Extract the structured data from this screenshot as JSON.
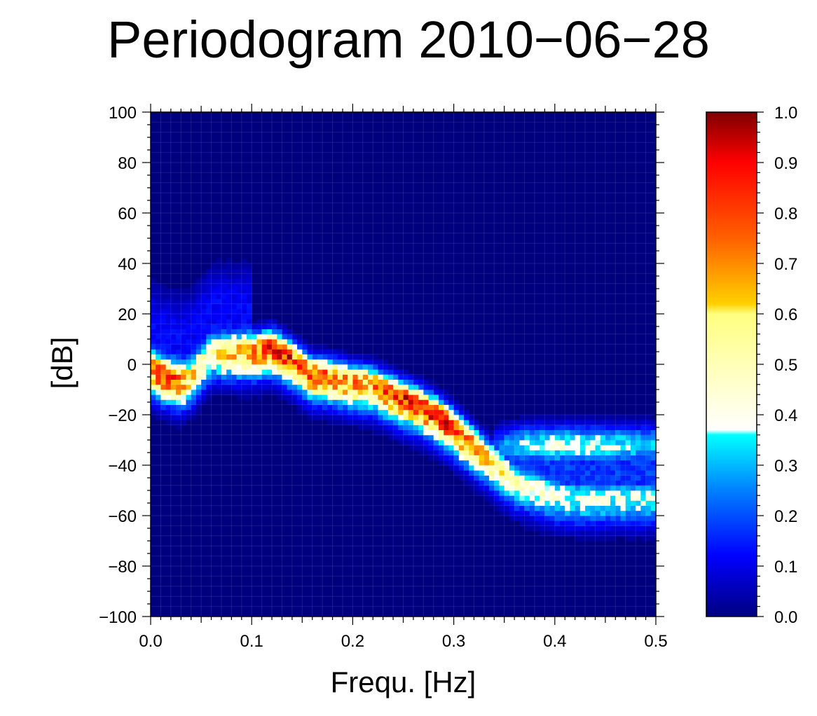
{
  "chart_data": {
    "type": "heatmap",
    "title": "Periodogram 2010−06−28",
    "xlabel": "Frequ. [Hz]",
    "ylabel": "[dB]",
    "xlim": [
      0.0,
      0.5
    ],
    "ylim": [
      -100,
      100
    ],
    "x_ticks": [
      "0.0",
      "0.1",
      "0.2",
      "0.3",
      "0.4",
      "0.5"
    ],
    "y_ticks": [
      "−100",
      "−80",
      "−60",
      "−40",
      "−20",
      "0",
      "20",
      "40",
      "60",
      "80",
      "100"
    ],
    "colorbar": {
      "range": [
        0.0,
        1.0
      ],
      "ticks": [
        "0.0",
        "0.1",
        "0.2",
        "0.3",
        "0.4",
        "0.5",
        "0.6",
        "0.7",
        "0.8",
        "0.9",
        "1.0"
      ],
      "colormap": [
        {
          "value": 0.0,
          "color": "#00007f"
        },
        {
          "value": 0.12,
          "color": "#0000ff"
        },
        {
          "value": 0.25,
          "color": "#0080ff"
        },
        {
          "value": 0.36,
          "color": "#00ffff"
        },
        {
          "value": 0.37,
          "color": "#ffffff"
        },
        {
          "value": 0.6,
          "color": "#ffff80"
        },
        {
          "value": 0.62,
          "color": "#ffd000"
        },
        {
          "value": 0.75,
          "color": "#ff6000"
        },
        {
          "value": 0.9,
          "color": "#ff0000"
        },
        {
          "value": 1.0,
          "color": "#7f0000"
        }
      ]
    },
    "ridge": {
      "freq": [
        0.0,
        0.01,
        0.02,
        0.03,
        0.04,
        0.05,
        0.06,
        0.08,
        0.1,
        0.12,
        0.14,
        0.16,
        0.18,
        0.2,
        0.22,
        0.24,
        0.26,
        0.28,
        0.3,
        0.32,
        0.34,
        0.36,
        0.38,
        0.4,
        0.42,
        0.44,
        0.46,
        0.48,
        0.5
      ],
      "db": [
        -1,
        -4,
        -5,
        -7,
        -5,
        0,
        5,
        5,
        5,
        7,
        2,
        -4,
        -5,
        -7,
        -8,
        -12,
        -15,
        -19,
        -25,
        -32,
        -39,
        -46,
        -49,
        -52,
        -53,
        -53,
        -53,
        -53,
        -53
      ],
      "peak": [
        0.75,
        0.82,
        0.8,
        0.72,
        0.6,
        0.55,
        0.55,
        0.65,
        0.72,
        0.85,
        0.82,
        0.78,
        0.76,
        0.72,
        0.72,
        0.82,
        0.85,
        0.86,
        0.82,
        0.72,
        0.6,
        0.5,
        0.45,
        0.42,
        0.4,
        0.4,
        0.4,
        0.4,
        0.38
      ]
    },
    "secondary_band": {
      "freq": [
        0.34,
        0.36,
        0.38,
        0.4,
        0.42,
        0.44,
        0.46,
        0.48,
        0.5
      ],
      "db": [
        -33,
        -32,
        -32,
        -32,
        -32,
        -32,
        -32,
        -32,
        -32
      ],
      "peak": [
        0.2,
        0.32,
        0.38,
        0.4,
        0.4,
        0.38,
        0.36,
        0.34,
        0.32
      ]
    }
  }
}
